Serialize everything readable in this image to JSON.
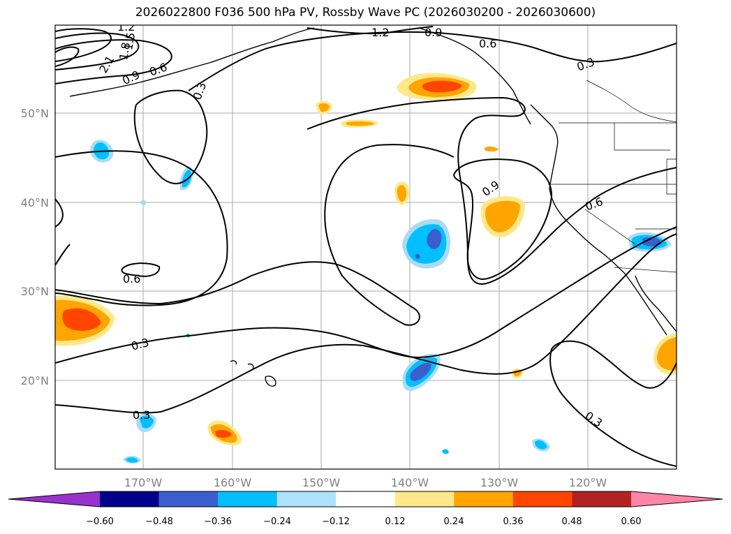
{
  "title": "2026022800 F036 500 hPa PV, Rossby Wave PC (2026030200 - 2026030600)",
  "colors": {
    "contour": "#000000",
    "grid": "#a8a8a8",
    "coast": "#000000",
    "pos_low": "#ffe88a",
    "pos_mid": "#ffa500",
    "pos_high": "#ff4500",
    "neg_low": "#a8dcf5",
    "neg_mid": "#00bfff",
    "neg_high": "#3a5fcd"
  },
  "map": {
    "lon_labels": [
      "170°W",
      "160°W",
      "150°W",
      "140°W",
      "130°W",
      "120°W"
    ],
    "lat_labels": [
      "50°N",
      "40°N",
      "30°N",
      "20°N"
    ]
  },
  "contour_labels": [
    "1.2",
    "1.5",
    "1.8",
    "2.1",
    "0.9",
    "0.6",
    "0.3",
    "1.2",
    "0.9",
    "0.6",
    "0.3",
    "0.9",
    "0.6",
    "0.6",
    "0.3",
    "0.3",
    "0.3"
  ],
  "colorbar": {
    "colors": [
      "#9932cc",
      "#00008b",
      "#3a5fcd",
      "#00bfff",
      "#aee2fa",
      "#ffffff",
      "#ffe88a",
      "#ffa500",
      "#ff4500",
      "#b22222",
      "#ff85a8"
    ],
    "ticks": [
      "−0.60",
      "−0.48",
      "−0.36",
      "−0.24",
      "−0.12",
      "0.12",
      "0.24",
      "0.36",
      "0.48",
      "0.60"
    ]
  }
}
